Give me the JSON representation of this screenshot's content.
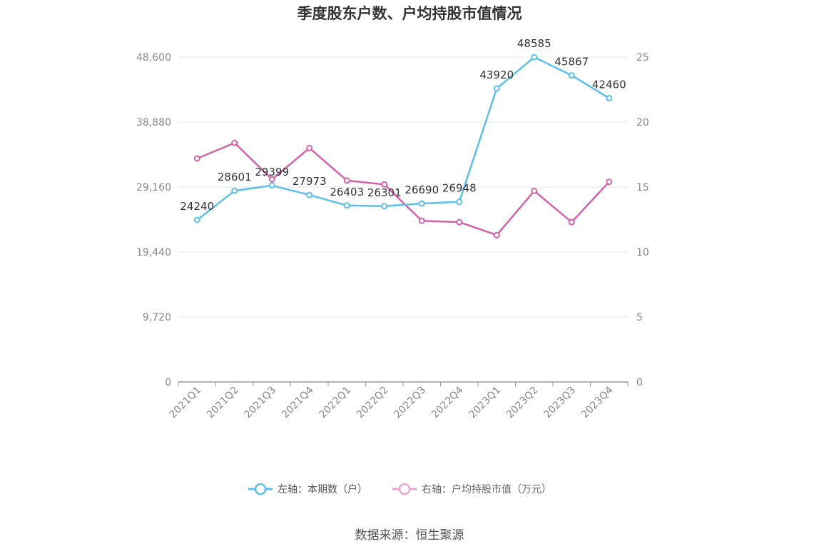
{
  "chart_data": {
    "type": "line",
    "title": "季度股东户数、户均持股市值情况",
    "categories": [
      "2021Q1",
      "2021Q2",
      "2021Q3",
      "2021Q4",
      "2022Q1",
      "2022Q2",
      "2022Q3",
      "2022Q4",
      "2023Q1",
      "2023Q2",
      "2023Q3",
      "2023Q4"
    ],
    "y_left": {
      "ticks": [
        0,
        9720,
        19440,
        29160,
        38880,
        48600
      ],
      "tick_labels": [
        "0",
        "9,720",
        "19,440",
        "29,160",
        "38,880",
        "48,600"
      ],
      "ylim": [
        0,
        48600
      ]
    },
    "y_right": {
      "ticks": [
        0,
        5,
        10,
        15,
        20,
        25
      ],
      "tick_labels": [
        "0",
        "5",
        "10",
        "15",
        "20",
        "25"
      ],
      "ylim": [
        0,
        25
      ]
    },
    "series": [
      {
        "name": "左轴：本期数（户）",
        "axis": "left",
        "color": "#5bc0eb",
        "values": [
          24240,
          28601,
          29399,
          27973,
          26403,
          26301,
          26690,
          26948,
          43920,
          48585,
          45867,
          42460
        ],
        "labels": [
          "24240",
          "28601",
          "29399",
          "27973",
          "26403",
          "26301",
          "26690",
          "26948",
          "43920",
          "48585",
          "45867",
          "42460"
        ]
      },
      {
        "name": "右轴：户均持股市值（万元）",
        "axis": "right",
        "color": "#d462a6",
        "values": [
          17.2,
          18.4,
          15.6,
          18.0,
          15.5,
          15.2,
          12.4,
          12.3,
          11.3,
          14.7,
          12.3,
          15.4
        ]
      }
    ],
    "grid": true,
    "legend_position": "bottom"
  },
  "source_text": "数据来源：恒生聚源"
}
